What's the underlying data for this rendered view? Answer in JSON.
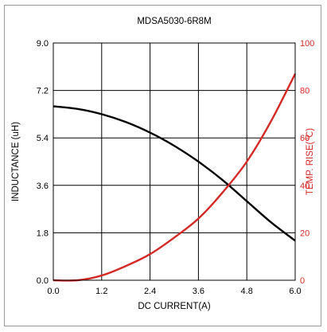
{
  "chart_data": {
    "type": "line",
    "title": "MDSA5030-6R8M",
    "xlabel": "DC CURRENT(A)",
    "ylabel": "INDUCTANCE (uH)",
    "y2label": "TEMP. RISE(℃)",
    "xlim": [
      0,
      6.0
    ],
    "ylim": [
      0,
      9.0
    ],
    "y2lim": [
      0,
      100
    ],
    "x_ticks": [
      "0.0",
      "1.2",
      "2.4",
      "3.6",
      "4.8",
      "6.0"
    ],
    "y_ticks": [
      "0.0",
      "1.8",
      "3.6",
      "5.4",
      "7.2",
      "9.0"
    ],
    "y2_ticks": [
      "0",
      "20",
      "40",
      "60",
      "80",
      "100"
    ],
    "grid": true,
    "series": [
      {
        "axis": "left",
        "color": "#000000",
        "x": [
          0.0,
          0.6,
          1.2,
          1.8,
          2.4,
          3.0,
          3.6,
          4.2,
          4.8,
          5.4,
          6.0
        ],
        "y": [
          6.6,
          6.5,
          6.3,
          6.0,
          5.6,
          5.1,
          4.5,
          3.8,
          3.0,
          2.2,
          1.5
        ]
      },
      {
        "axis": "right",
        "color": "#d42a26",
        "x": [
          0.0,
          0.6,
          1.2,
          1.8,
          2.4,
          3.0,
          3.6,
          4.2,
          4.8,
          5.4,
          6.0
        ],
        "y": [
          0,
          0,
          2,
          6,
          11,
          18,
          26,
          37,
          50,
          67,
          87
        ]
      }
    ]
  }
}
